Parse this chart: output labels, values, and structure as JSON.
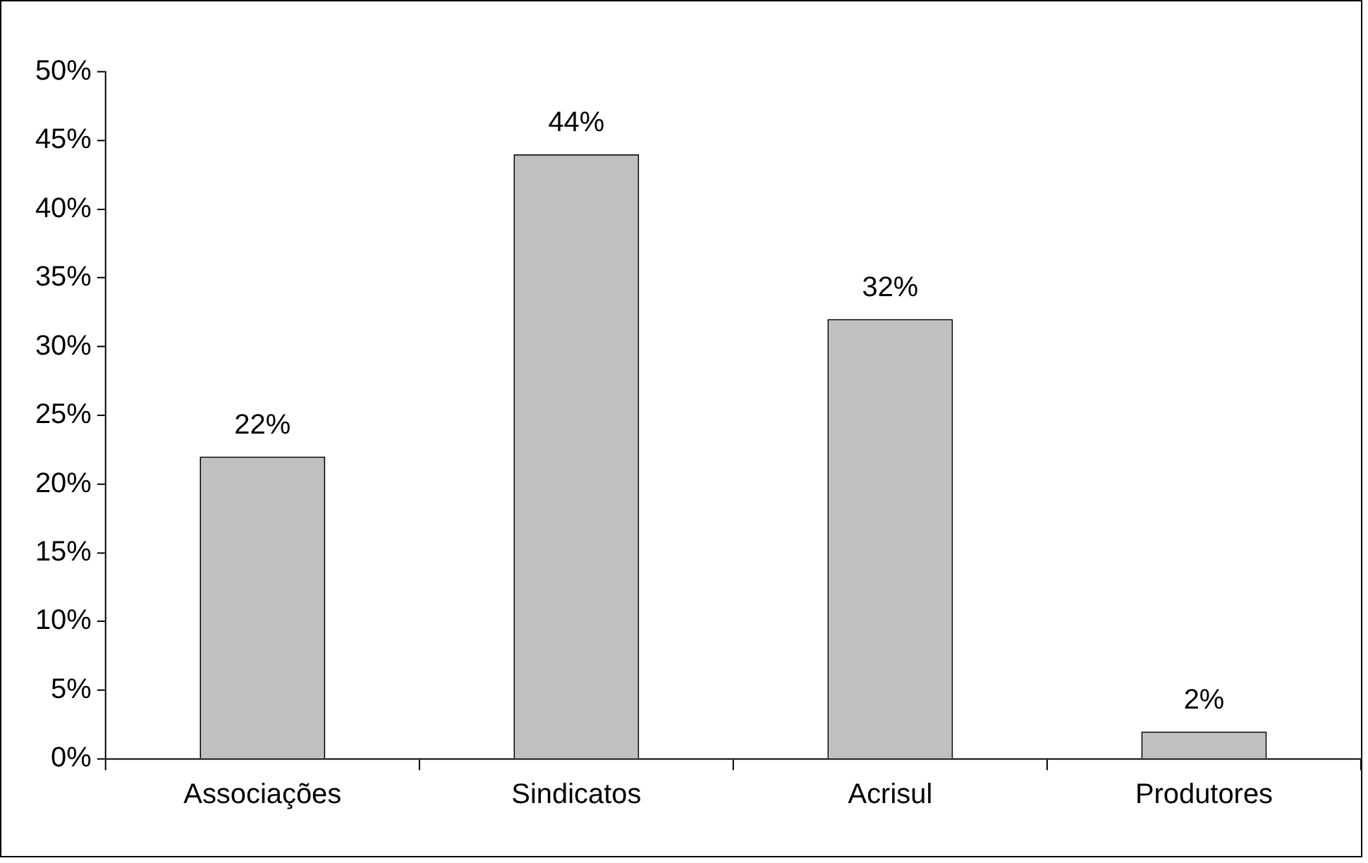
{
  "chart_data": {
    "type": "bar",
    "categories": [
      "Associações",
      "Sindicatos",
      "Acrisul",
      "Produtores"
    ],
    "values": [
      22,
      44,
      32,
      2
    ],
    "value_labels": [
      "22%",
      "44%",
      "32%",
      "2%"
    ],
    "color": "#c0c0c0",
    "ylim": [
      0,
      50
    ],
    "yticks": [
      {
        "value": 0,
        "label": "0%"
      },
      {
        "value": 5,
        "label": "5%"
      },
      {
        "value": 10,
        "label": "10%"
      },
      {
        "value": 15,
        "label": "15%"
      },
      {
        "value": 20,
        "label": "20%"
      },
      {
        "value": 25,
        "label": "25%"
      },
      {
        "value": 30,
        "label": "30%"
      },
      {
        "value": 35,
        "label": "35%"
      },
      {
        "value": 40,
        "label": "40%"
      },
      {
        "value": 45,
        "label": "45%"
      },
      {
        "value": 50,
        "label": "50%"
      }
    ],
    "grid": false,
    "legend": false
  }
}
